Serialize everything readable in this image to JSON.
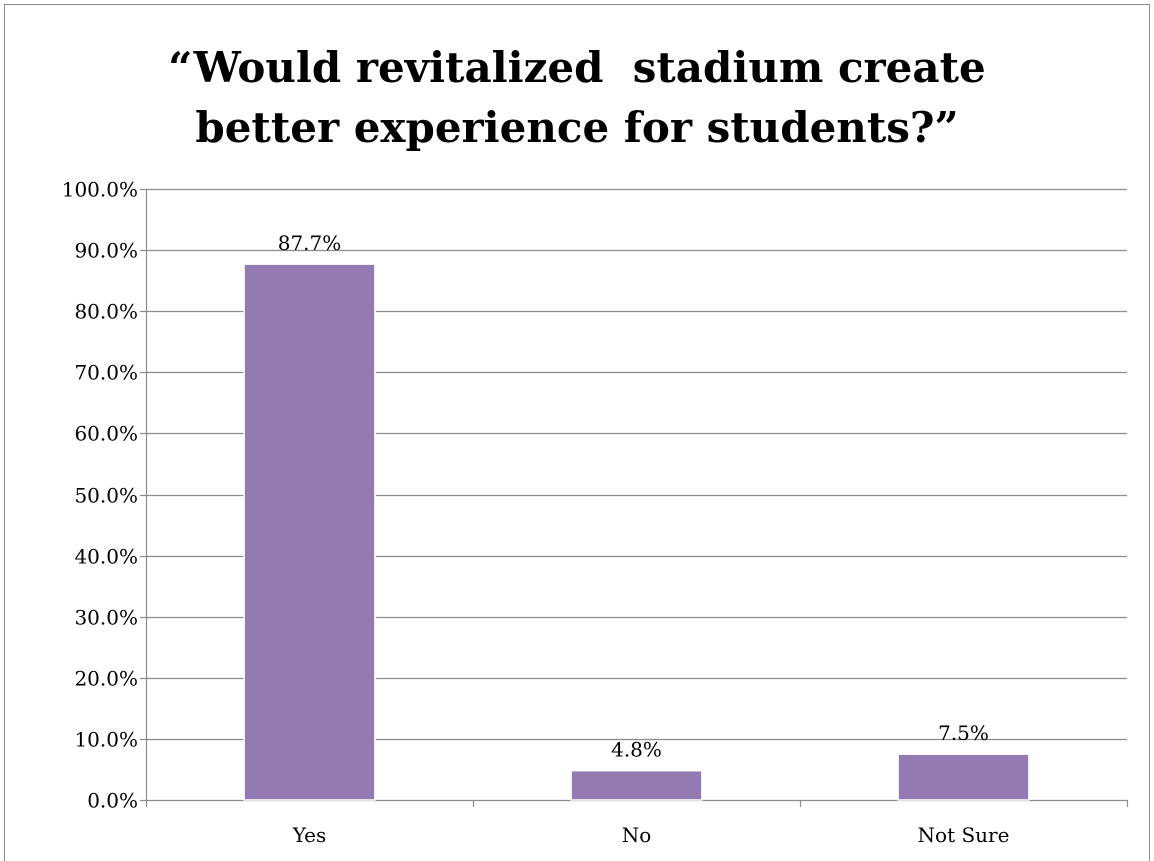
{
  "chart_data": {
    "type": "bar",
    "title_lines": [
      "“Would revitalized  stadium create",
      "better experience for students?”"
    ],
    "categories": [
      "Yes",
      "No",
      "Not Sure"
    ],
    "values": [
      87.7,
      4.8,
      7.5
    ],
    "value_labels": [
      "87.7%",
      "4.8%",
      "7.5%"
    ],
    "ylim": [
      0,
      100
    ],
    "y_ticks": [
      0,
      10,
      20,
      30,
      40,
      50,
      60,
      70,
      80,
      90,
      100
    ],
    "y_tick_labels": [
      "0.0%",
      "10.0%",
      "20.0%",
      "30.0%",
      "40.0%",
      "50.0%",
      "60.0%",
      "70.0%",
      "80.0%",
      "90.0%",
      "100.0%"
    ],
    "grid": true,
    "legend": "none",
    "bar_color": "#937ab3",
    "grid_color": "#8c8c8c"
  }
}
